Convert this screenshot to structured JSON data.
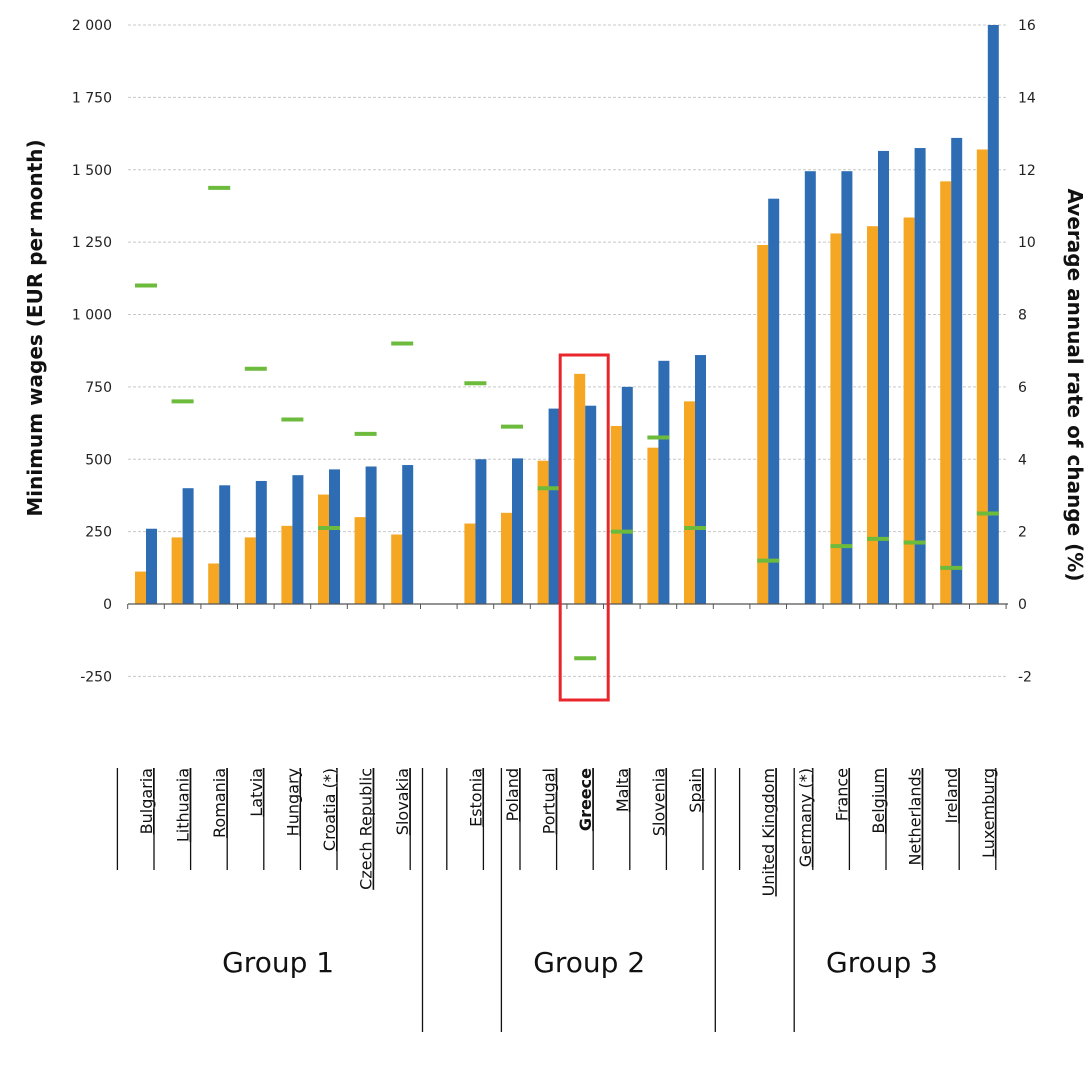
{
  "chart_data": {
    "type": "bar",
    "ylabel": "Minimum wages (EUR per month)",
    "y2label": "Average annual rate of change (%)",
    "ylim": [
      -250,
      2000
    ],
    "y_ticks": [
      -250,
      0,
      250,
      500,
      750,
      1000,
      1250,
      1500,
      1750,
      2000
    ],
    "y_tick_labels": [
      "-250",
      "0",
      "250",
      "500",
      "750",
      "1 000",
      "1 250",
      "1 500",
      "1 750",
      "2 000"
    ],
    "y2lim": [
      -2,
      16
    ],
    "y2_ticks": [
      -2,
      0,
      2,
      4,
      6,
      8,
      10,
      12,
      14,
      16
    ],
    "grid": true,
    "highlight": "Greece",
    "groups": [
      {
        "label": "Group 1",
        "countries": [
          "Bulgaria",
          "Lithuania",
          "Romania",
          "Latvia",
          "Hungary",
          "Croatia (*)",
          "Czech Republic",
          "Slovakia"
        ]
      },
      {
        "label": "Group 2",
        "countries": [
          "Estonia",
          "Poland",
          "Portugal",
          "Greece",
          "Malta",
          "Slovenia",
          "Spain"
        ]
      },
      {
        "label": "Group 3",
        "countries": [
          "United Kingdom",
          "Germany (*)",
          "France",
          "Belgium",
          "Netherlands",
          "Ireland",
          "Luxemburg"
        ]
      }
    ],
    "series": [
      {
        "color": "#f5a623",
        "axis": "left",
        "kind": "bar",
        "values": [
          112,
          230,
          140,
          230,
          270,
          378,
          300,
          240,
          278,
          315,
          495,
          795,
          615,
          540,
          700,
          1240,
          null,
          1280,
          1305,
          1335,
          1460,
          1570
        ]
      },
      {
        "color": "#2e6db4",
        "axis": "left",
        "kind": "bar",
        "values": [
          260,
          400,
          410,
          425,
          445,
          465,
          475,
          480,
          500,
          503,
          675,
          685,
          750,
          840,
          860,
          1400,
          1495,
          1495,
          1565,
          1575,
          1610,
          2000
        ]
      },
      {
        "color": "#6cbb3c",
        "axis": "right",
        "kind": "marker",
        "values": [
          8.8,
          5.6,
          11.5,
          6.5,
          5.1,
          2.1,
          4.7,
          7.2,
          6.1,
          4.9,
          3.2,
          -1.5,
          2.0,
          4.6,
          2.1,
          1.2,
          null,
          1.6,
          1.8,
          1.7,
          1.0,
          2.5
        ]
      }
    ]
  }
}
